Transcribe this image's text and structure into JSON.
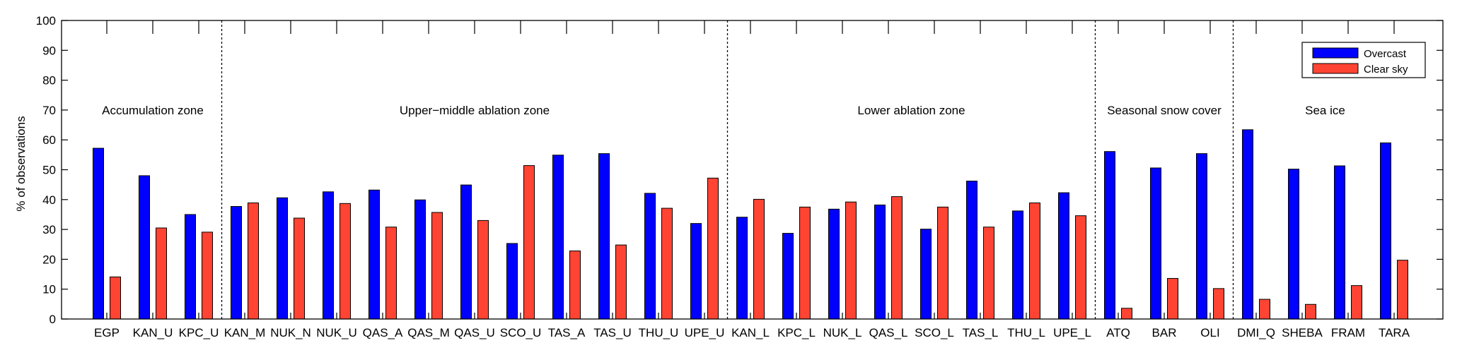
{
  "chart_data": {
    "type": "bar",
    "title": "",
    "xlabel": "",
    "ylabel": "% of observations",
    "ylim": [
      0,
      100
    ],
    "yticks": [
      0,
      10,
      20,
      30,
      40,
      50,
      60,
      70,
      80,
      90,
      100
    ],
    "grid": false,
    "legend_position": "top-right",
    "categories": [
      "EGP",
      "KAN_U",
      "KPC_U",
      "KAN_M",
      "NUK_N",
      "NUK_U",
      "QAS_A",
      "QAS_M",
      "QAS_U",
      "SCO_U",
      "TAS_A",
      "TAS_U",
      "THU_U",
      "UPE_U",
      "KAN_L",
      "KPC_L",
      "NUK_L",
      "QAS_L",
      "SCO_L",
      "TAS_L",
      "THU_L",
      "UPE_L",
      "ATQ",
      "BAR",
      "OLI",
      "DMI_Q",
      "SHEBA",
      "FRAM",
      "TARA"
    ],
    "series": [
      {
        "name": "Overcast",
        "color": "#0000ff",
        "values": [
          57.2,
          48,
          35,
          37.7,
          40.6,
          42.6,
          43.2,
          39.9,
          44.9,
          25.3,
          54.9,
          55.4,
          42.1,
          32,
          34.1,
          28.7,
          36.8,
          38.2,
          30.1,
          46.2,
          36.2,
          42.3,
          56.1,
          50.6,
          55.4,
          63.4,
          50.2,
          51.3,
          59
        ]
      },
      {
        "name": "Clear sky",
        "color": "#ff4433",
        "values": [
          14.1,
          30.5,
          29.1,
          38.9,
          33.8,
          38.7,
          30.8,
          35.7,
          33,
          51.4,
          22.8,
          24.8,
          37.1,
          47.2,
          40.1,
          37.5,
          39.2,
          41,
          37.5,
          30.8,
          38.9,
          34.6,
          3.6,
          13.6,
          10.2,
          6.6,
          4.9,
          11.2,
          19.7
        ]
      }
    ],
    "zones": [
      {
        "label": "Accumulation zone",
        "from": 0,
        "to": 2
      },
      {
        "label": "Upper−middle ablation zone",
        "from": 3,
        "to": 13
      },
      {
        "label": "Lower ablation zone",
        "from": 14,
        "to": 21
      },
      {
        "label": "Seasonal snow cover",
        "from": 22,
        "to": 24
      },
      {
        "label": "Sea ice",
        "from": 25,
        "to": 28
      }
    ]
  }
}
